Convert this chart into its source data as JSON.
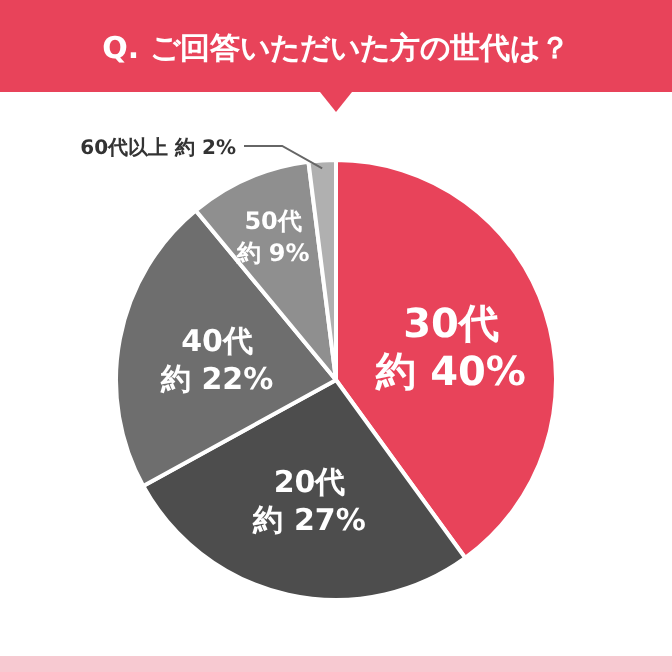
{
  "chart_data": {
    "type": "pie",
    "title": "Q. ご回答いただいた方の世代は？",
    "categories": [
      "30代",
      "20代",
      "40代",
      "50代",
      "60代以上"
    ],
    "values": [
      40,
      27,
      22,
      9,
      2
    ],
    "colors": [
      "#e8435a",
      "#4d4d4d",
      "#6e6e6e",
      "#8f8f8f",
      "#b0b0b0"
    ],
    "value_labels": [
      "約 40%",
      "約 27%",
      "約 22%",
      "約 9%",
      "約 2%"
    ]
  }
}
